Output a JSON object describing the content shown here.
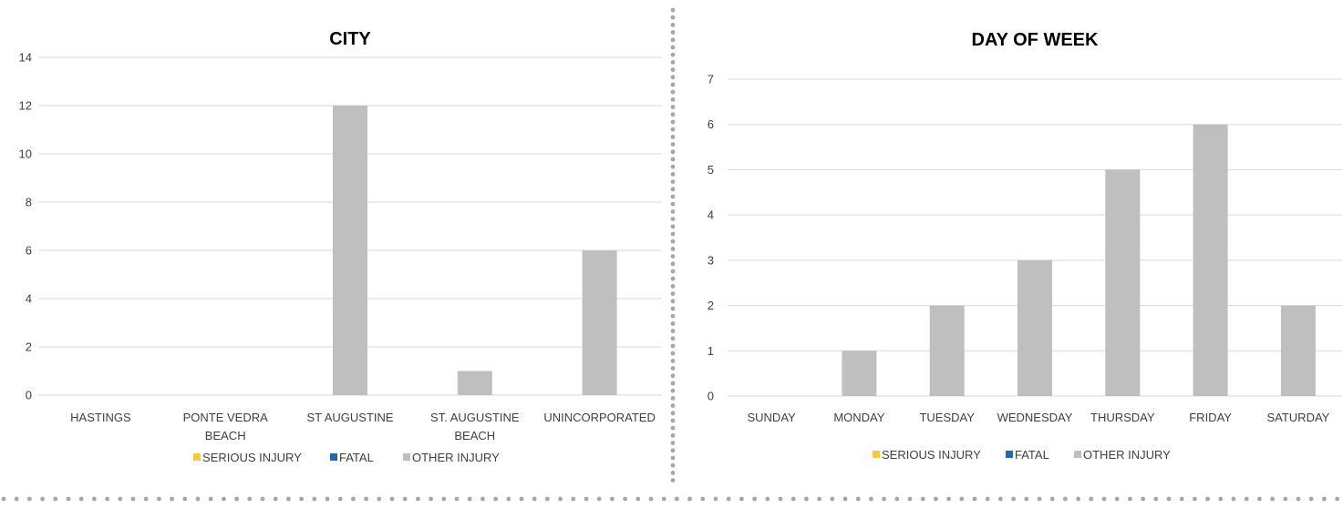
{
  "colors": {
    "serious": "#F9C93A",
    "fatal": "#1F6BB3",
    "other": "#BFBFBF",
    "grid": "#D9D9D9",
    "text": "#404040",
    "title": "#000000",
    "divider_dots": "#A6A6A6"
  },
  "chart_data": [
    {
      "type": "bar",
      "title": "CITY",
      "categories": [
        "HASTINGS",
        "PONTE VEDRA BEACH",
        "ST AUGUSTINE",
        "ST. AUGUSTINE BEACH",
        "UNINCORPORATED"
      ],
      "category_lines": [
        [
          "HASTINGS"
        ],
        [
          "PONTE VEDRA",
          "BEACH"
        ],
        [
          "ST AUGUSTINE"
        ],
        [
          "ST. AUGUSTINE",
          "BEACH"
        ],
        [
          "UNINCORPORATED"
        ]
      ],
      "series": [
        {
          "name": "SERIOUS INJURY",
          "values": [
            0,
            0,
            0,
            0,
            0
          ]
        },
        {
          "name": "FATAL",
          "values": [
            0,
            0,
            0,
            0,
            0
          ]
        },
        {
          "name": "OTHER INJURY",
          "values": [
            0,
            0,
            12,
            1,
            6
          ]
        }
      ],
      "ylim": [
        0,
        14
      ],
      "yticks": [
        0,
        2,
        4,
        6,
        8,
        10,
        12,
        14
      ],
      "xlabel": "",
      "ylabel": "",
      "grid": true,
      "legend": "bottom",
      "stacked": true
    },
    {
      "type": "bar",
      "title": "DAY OF WEEK",
      "categories": [
        "SUNDAY",
        "MONDAY",
        "TUESDAY",
        "WEDNESDAY",
        "THURSDAY",
        "FRIDAY",
        "SATURDAY"
      ],
      "category_lines": [
        [
          "SUNDAY"
        ],
        [
          "MONDAY"
        ],
        [
          "TUESDAY"
        ],
        [
          "WEDNESDAY"
        ],
        [
          "THURSDAY"
        ],
        [
          "FRIDAY"
        ],
        [
          "SATURDAY"
        ]
      ],
      "series": [
        {
          "name": "SERIOUS INJURY",
          "values": [
            0,
            0,
            0,
            0,
            0,
            0,
            0
          ]
        },
        {
          "name": "FATAL",
          "values": [
            0,
            0,
            0,
            0,
            0,
            0,
            0
          ]
        },
        {
          "name": "OTHER INJURY",
          "values": [
            0,
            1,
            2,
            3,
            5,
            6,
            2
          ]
        }
      ],
      "ylim": [
        0,
        7
      ],
      "yticks": [
        0,
        1,
        2,
        3,
        4,
        5,
        6,
        7
      ],
      "xlabel": "",
      "ylabel": "",
      "grid": true,
      "legend": "bottom",
      "stacked": true
    }
  ]
}
